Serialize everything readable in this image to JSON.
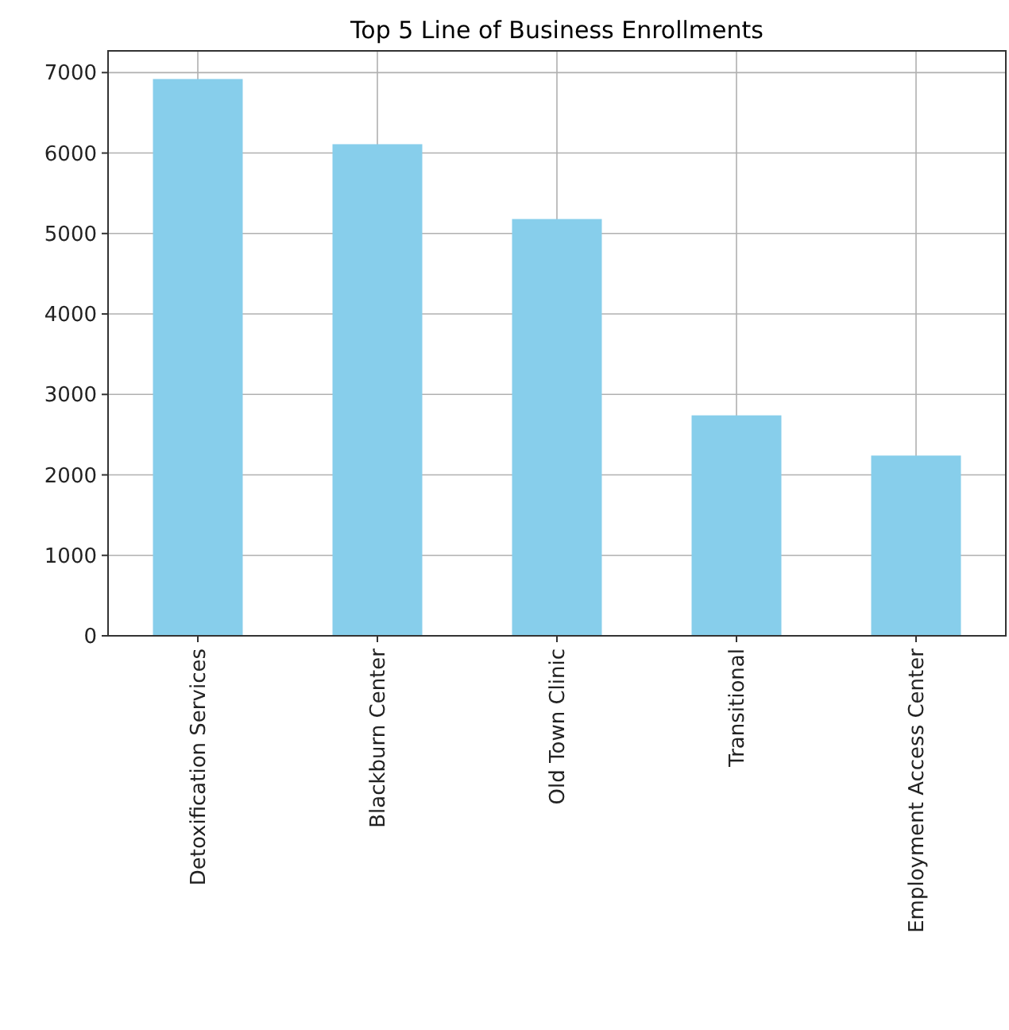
{
  "chart_data": {
    "type": "bar",
    "title": "Top 5 Line of Business Enrollments",
    "categories": [
      "Detoxification Services",
      "Blackburn Center",
      "Old Town Clinic",
      "Transitional",
      "Employment Access Center"
    ],
    "values": [
      6920,
      6110,
      5180,
      2740,
      2240
    ],
    "color": "#87ceeb",
    "ylim": [
      0,
      7270
    ],
    "yticks": [
      0,
      1000,
      2000,
      3000,
      4000,
      5000,
      6000,
      7000
    ],
    "grid": true
  }
}
